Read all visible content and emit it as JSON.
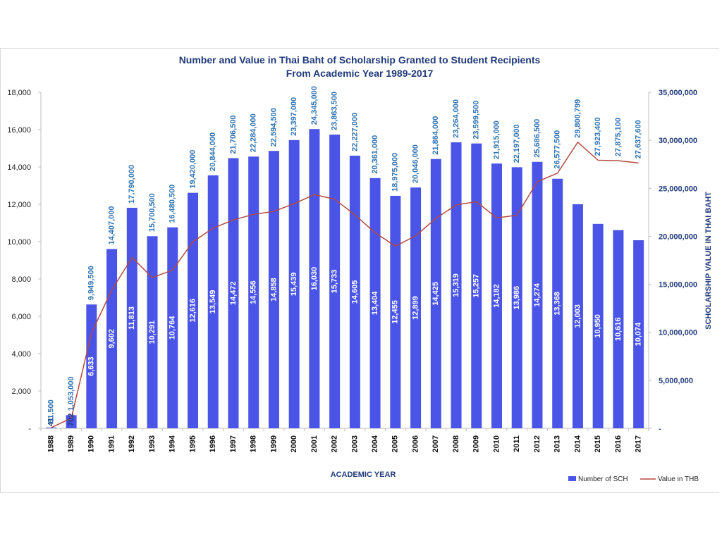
{
  "chart_data": {
    "type": "bar+line",
    "title": [
      "Number and Value in Thai Baht of Scholarship Granted to  Student Recipients",
      "From Academic Year 1989-2017"
    ],
    "xlabel": "ACADEMIC YEAR",
    "ylabel_left": "",
    "ylabel_right": "SCHOLARSHIP VALUE IN THAI BAHT",
    "ylim_left": [
      0,
      18000
    ],
    "ylim_right": [
      0,
      35000000
    ],
    "yticks_left": [
      "-",
      "2,000",
      "4,000",
      "6,000",
      "8,000",
      "10,000",
      "12,000",
      "14,000",
      "16,000",
      "18,000"
    ],
    "yticks_right": [
      "-",
      "5,000,000",
      "10,000,000",
      "15,000,000",
      "20,000,000",
      "25,000,000",
      "30,000,000",
      "35,000,000"
    ],
    "categories": [
      "1988",
      "1989",
      "1990",
      "1991",
      "1992",
      "1993",
      "1994",
      "1995",
      "1996",
      "1997",
      "1998",
      "1999",
      "2000",
      "2001",
      "2002",
      "2003",
      "2004",
      "2005",
      "2006",
      "2007",
      "2008",
      "2009",
      "2010",
      "2011",
      "2012",
      "2013",
      "2014",
      "2015",
      "2016",
      "2017"
    ],
    "series": [
      {
        "name": "Number of SCH",
        "axis": "left",
        "color": "#4a55e8",
        "values": [
          41,
          702,
          6633,
          9602,
          11813,
          10291,
          10764,
          12616,
          13549,
          14472,
          14556,
          14858,
          15439,
          16030,
          15733,
          14605,
          13404,
          12455,
          12899,
          14425,
          15319,
          15257,
          14182,
          13986,
          14274,
          13368,
          12003,
          10950,
          10616,
          10074
        ],
        "labels": [
          "41",
          "702",
          "6,633",
          "9,602",
          "11,813",
          "10,291",
          "10,764",
          "12,616",
          "13,549",
          "14,472",
          "14,556",
          "14,858",
          "15,439",
          "16,030",
          "15,733",
          "14,605",
          "13,404",
          "12,455",
          "12,899",
          "14,425",
          "15,319",
          "15,257",
          "14,182",
          "13,986",
          "14,274",
          "13,368",
          "12,003",
          "10,950",
          "10,616",
          "10,074"
        ]
      },
      {
        "name": "Value in THB",
        "axis": "right",
        "color": "#b5483f",
        "values": [
          61500,
          1053000,
          9949500,
          14407000,
          17790000,
          15700500,
          16480500,
          19420000,
          20844000,
          21706500,
          22284000,
          22594500,
          23397000,
          24345000,
          23863500,
          22227000,
          20361000,
          18975000,
          20046000,
          21864000,
          23264000,
          23599500,
          21915000,
          22197000,
          25686500,
          26577500,
          29800799,
          27923400,
          27875100,
          27637600
        ],
        "labels": [
          "61,500",
          "1,053,000",
          "9,949,500",
          "14,407,000",
          "17,790,000",
          "15,700,500",
          "16,480,500",
          "19,420,000",
          "20,844,000",
          "21,706,500",
          "22,284,000",
          "22,594,500",
          "23,397,000",
          "24,345,000",
          "23,863,500",
          "22,227,000",
          "20,361,000",
          "18,975,000",
          "20,046,000",
          "21,864,000",
          "23,264,000",
          "23,599,500",
          "21,915,000",
          "22,197,000",
          "25,686,500",
          "26,577,500",
          "29,800,799",
          "27,923,400",
          "27,875,100",
          "27,637,600"
        ]
      }
    ],
    "legend_position": "bottom-right",
    "grid": false
  }
}
